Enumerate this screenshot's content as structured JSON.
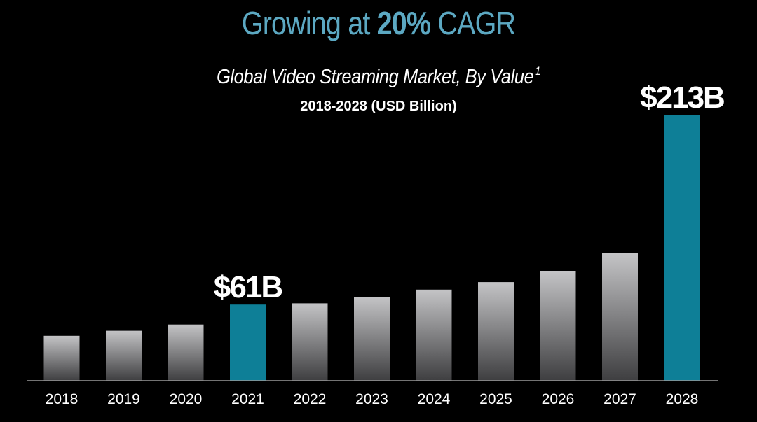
{
  "header": {
    "headline_prefix": "Growing at ",
    "headline_strong": "20%",
    "headline_suffix": " CAGR",
    "subtitle": "Global Video Streaming Market, By Value",
    "subtitle_footnote": "1",
    "range_label": "2018-2028 (USD Billion)"
  },
  "colors": {
    "background": "#000000",
    "headline": "#5ca8c2",
    "highlight_bar": "#0e7f97",
    "bar_gradient_top": "#c4c4c6",
    "bar_gradient_bottom": "#3e3e40",
    "axis": "#9a9a9a"
  },
  "chart_data": {
    "type": "bar",
    "categories": [
      "2018",
      "2019",
      "2020",
      "2021",
      "2022",
      "2023",
      "2024",
      "2025",
      "2026",
      "2027",
      "2028"
    ],
    "values": [
      36,
      40,
      45,
      61,
      62,
      67,
      73,
      79,
      88,
      102,
      213
    ],
    "highlighted": [
      "2021",
      "2028"
    ],
    "data_labels": [
      {
        "category": "2021",
        "text": "$61B"
      },
      {
        "category": "2028",
        "text": "$213B"
      }
    ],
    "title": "",
    "xlabel": "",
    "ylabel": "",
    "ylim": [
      0,
      213
    ],
    "grid": false,
    "legend": "none"
  }
}
